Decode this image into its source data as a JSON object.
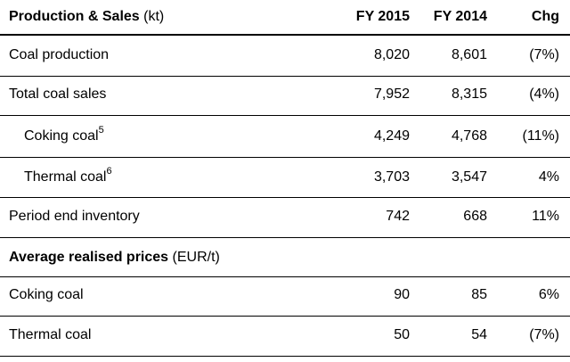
{
  "header": {
    "title_bold": "Production & Sales",
    "title_unit": " (kt)",
    "col1": "FY 2015",
    "col2": "FY 2014",
    "col3": "Chg"
  },
  "production_rows": [
    {
      "label": "Coal production",
      "sup": "",
      "v2015": "8,020",
      "v2014": "8,601",
      "chg": "(7%)"
    },
    {
      "label": "Total coal sales",
      "sup": "",
      "v2015": "7,952",
      "v2014": "8,315",
      "chg": "(4%)"
    },
    {
      "label": "Coking coal",
      "sup": "5",
      "v2015": "4,249",
      "v2014": "4,768",
      "chg": "(11%)"
    },
    {
      "label": "Thermal coal",
      "sup": "6",
      "v2015": "3,703",
      "v2014": "3,547",
      "chg": "4%"
    },
    {
      "label": "Period end inventory",
      "sup": "",
      "v2015": "742",
      "v2014": "668",
      "chg": "11%"
    }
  ],
  "prices_section": {
    "title_bold": "Average realised prices",
    "title_unit": " (EUR/t)"
  },
  "price_rows": [
    {
      "label": "Coking coal",
      "v2015": "90",
      "v2014": "85",
      "chg": "6%"
    },
    {
      "label": "Thermal coal",
      "v2015": "50",
      "v2014": "54",
      "chg": "(7%)"
    }
  ]
}
